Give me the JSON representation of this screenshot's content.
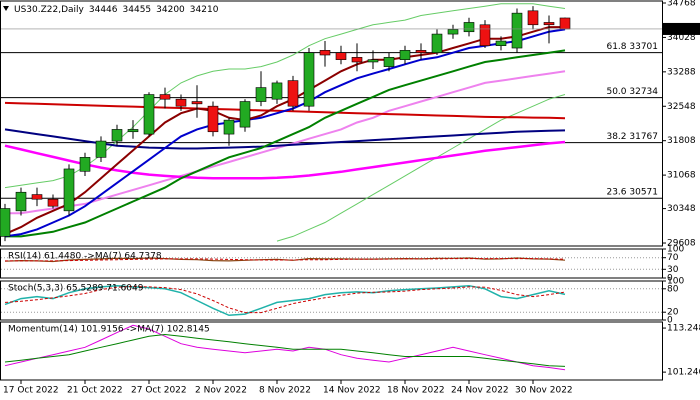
{
  "chart_data": [
    {
      "type": "candlestick",
      "title": "US30.Z22,Daily",
      "ohlc": [
        34446,
        34455,
        34200,
        34210
      ],
      "last_price": 34210,
      "up_color": "#22aa22",
      "down_color": "#ee1111",
      "categories": [
        null,
        "17 Oct 2022",
        null,
        null,
        null,
        "21 Oct 2022",
        null,
        null,
        null,
        "27 Oct 2022",
        null,
        null,
        null,
        "2 Nov 2022",
        null,
        null,
        null,
        "8 Nov 2022",
        null,
        null,
        null,
        "14 Nov 2022",
        null,
        null,
        null,
        "18 Nov 2022",
        null,
        null,
        null,
        "24 Nov 2022",
        null,
        null,
        null,
        "30 Nov 2022",
        null,
        null
      ],
      "open": [
        29750,
        30300,
        30650,
        30550,
        30300,
        31150,
        31450,
        31800,
        32000,
        31950,
        32800,
        32700,
        32650,
        32550,
        31950,
        32100,
        32650,
        32700,
        33100,
        32550,
        33750,
        33700,
        33600,
        33500,
        33400,
        33550,
        33750,
        33700,
        34100,
        34150,
        34300,
        33850,
        33800,
        34600,
        34350,
        34446
      ],
      "high": [
        30450,
        30800,
        30800,
        30650,
        31300,
        31550,
        31900,
        32150,
        32250,
        32850,
        32950,
        32800,
        33000,
        32650,
        32300,
        32700,
        33300,
        33100,
        33200,
        33800,
        33950,
        33850,
        33900,
        33750,
        33700,
        33850,
        33900,
        34200,
        34300,
        34450,
        34400,
        34050,
        34650,
        34700,
        34500,
        34455
      ],
      "low": [
        29650,
        30200,
        30400,
        30350,
        30200,
        31050,
        31350,
        31700,
        31850,
        31900,
        32500,
        32450,
        32300,
        31900,
        31700,
        32000,
        32550,
        32600,
        32450,
        32450,
        33400,
        33450,
        33300,
        33350,
        33300,
        33450,
        33550,
        33650,
        34000,
        34050,
        33800,
        33750,
        33700,
        34200,
        33900,
        34200
      ],
      "close": [
        30350,
        30700,
        30550,
        30400,
        31200,
        31450,
        31800,
        32050,
        32050,
        32800,
        32700,
        32550,
        32600,
        32000,
        32250,
        32650,
        32950,
        33050,
        32550,
        33700,
        33650,
        33550,
        33500,
        33550,
        33600,
        33750,
        33700,
        34100,
        34200,
        34350,
        33850,
        33950,
        34550,
        34300,
        34300,
        34210
      ],
      "series": [
        {
          "color": "#66cc66",
          "width": 1,
          "values": [
            30800,
            30850,
            30900,
            30950,
            31050,
            31250,
            31500,
            31800,
            32100,
            32450,
            32800,
            33050,
            33200,
            33300,
            33350,
            33350,
            33400,
            33500,
            33650,
            33850,
            34000,
            34100,
            34200,
            34300,
            34350,
            34400,
            34500,
            34550,
            34600,
            34650,
            34700,
            34750,
            34750,
            34750,
            34700,
            34650
          ]
        },
        {
          "color": "#66cc66",
          "width": 1,
          "values": [
            null,
            null,
            null,
            null,
            null,
            null,
            null,
            null,
            null,
            null,
            null,
            null,
            null,
            null,
            null,
            null,
            null,
            29650,
            29750,
            29900,
            30050,
            30250,
            30450,
            30650,
            30850,
            31050,
            31250,
            31450,
            31650,
            31850,
            32050,
            32250,
            32400,
            32550,
            32700,
            32800
          ]
        },
        {
          "color": "#ee82ee",
          "width": 2,
          "values": [
            30250,
            30250,
            30300,
            30350,
            30400,
            30450,
            30550,
            30650,
            30750,
            30850,
            30950,
            31050,
            31150,
            31250,
            31350,
            31450,
            31550,
            31650,
            31750,
            31850,
            31950,
            32050,
            32200,
            32300,
            32450,
            32550,
            32650,
            32750,
            32850,
            32950,
            33050,
            33100,
            33150,
            33200,
            33250,
            33300
          ]
        },
        {
          "color": "#cc0000",
          "width": 2,
          "values": [
            32620,
            32610,
            32600,
            32590,
            32580,
            32570,
            32560,
            32550,
            32540,
            32530,
            32520,
            32510,
            32500,
            32490,
            32480,
            32470,
            32460,
            32450,
            32440,
            32430,
            32420,
            32410,
            32400,
            32390,
            32380,
            32370,
            32360,
            32350,
            32340,
            32330,
            32320,
            32315,
            32310,
            32305,
            32300,
            32290
          ]
        },
        {
          "color": "#000080",
          "width": 2,
          "values": [
            32050,
            32000,
            31950,
            31900,
            31850,
            31800,
            31750,
            31700,
            31680,
            31660,
            31650,
            31640,
            31640,
            31650,
            31660,
            31670,
            31680,
            31700,
            31720,
            31740,
            31760,
            31780,
            31800,
            31820,
            31840,
            31860,
            31880,
            31900,
            31920,
            31940,
            31960,
            31980,
            32000,
            32010,
            32020,
            32030
          ]
        },
        {
          "color": "#ff00ff",
          "width": 2.5,
          "values": [
            31700,
            31620,
            31540,
            31460,
            31380,
            31300,
            31230,
            31170,
            31120,
            31080,
            31050,
            31030,
            31010,
            31000,
            31000,
            31000,
            31000,
            31010,
            31030,
            31060,
            31100,
            31140,
            31190,
            31240,
            31290,
            31340,
            31390,
            31440,
            31490,
            31540,
            31590,
            31630,
            31670,
            31710,
            31750,
            31780
          ]
        },
        {
          "color": "#008000",
          "width": 2,
          "values": [
            29750,
            29750,
            29800,
            29850,
            29950,
            30050,
            30200,
            30350,
            30500,
            30650,
            30800,
            31000,
            31150,
            31300,
            31450,
            31550,
            31650,
            31800,
            31950,
            32100,
            32300,
            32450,
            32600,
            32750,
            32900,
            33000,
            33100,
            33200,
            33300,
            33400,
            33500,
            33550,
            33600,
            33650,
            33700,
            33750
          ]
        },
        {
          "color": "#0000cd",
          "width": 2,
          "values": [
            29750,
            29800,
            29900,
            30050,
            30200,
            30400,
            30650,
            30900,
            31150,
            31400,
            31650,
            31900,
            32050,
            32150,
            32200,
            32250,
            32300,
            32400,
            32500,
            32650,
            32850,
            33000,
            33150,
            33250,
            33350,
            33450,
            33550,
            33600,
            33700,
            33800,
            33850,
            33900,
            33950,
            34050,
            34150,
            34200
          ]
        },
        {
          "color": "#8b0000",
          "width": 2,
          "values": [
            29800,
            29950,
            30150,
            30300,
            30450,
            30700,
            31000,
            31300,
            31600,
            31900,
            32200,
            32400,
            32500,
            32450,
            32300,
            32250,
            32350,
            32550,
            32700,
            32900,
            33100,
            33300,
            33450,
            33550,
            33550,
            33600,
            33650,
            33700,
            33800,
            33900,
            34000,
            34000,
            34050,
            34150,
            34250,
            34250
          ]
        }
      ],
      "levels": [
        {
          "label": "61.8 33701",
          "value": 33701
        },
        {
          "label": "50.0 32734",
          "value": 32734
        },
        {
          "label": "38.2 31767",
          "value": 31767
        },
        {
          "label": "23.6 30571",
          "value": 30571
        }
      ],
      "ylim": [
        29544,
        34811
      ],
      "yticks": [
        34768,
        34028,
        33288,
        32548,
        31808,
        31068,
        30348,
        29608
      ]
    },
    {
      "type": "line",
      "title": "RSI(14) 61.4480 ->MA(7) 64.7378",
      "ylim": [
        0,
        100
      ],
      "yticks": [
        0,
        30,
        70,
        100
      ],
      "series": [
        {
          "color": "#8b4513",
          "width": 1.2,
          "values": [
            58,
            60,
            59,
            57,
            62,
            64,
            66,
            68,
            67,
            69,
            67,
            64,
            63,
            60,
            59,
            61,
            63,
            64,
            61,
            67,
            66,
            66,
            65,
            65,
            66,
            67,
            66,
            68,
            68,
            69,
            65,
            66,
            69,
            66,
            65,
            61.448
          ]
        },
        {
          "color": "#cc0000",
          "width": 1,
          "dash": true,
          "values": [
            59,
            59,
            59,
            59,
            60,
            61,
            62,
            63,
            64,
            65,
            66,
            66,
            66,
            65,
            64,
            63,
            62,
            62,
            62,
            63,
            63,
            64,
            65,
            65,
            65,
            66,
            66,
            66,
            67,
            67,
            67,
            67,
            67,
            67,
            66,
            64.7378
          ]
        }
      ]
    },
    {
      "type": "line",
      "title": "Stoch(5,3,3) 65.5289 71.6049",
      "ylim": [
        0,
        100
      ],
      "yticks": [
        0,
        20,
        80,
        100
      ],
      "series": [
        {
          "color": "#20b2aa",
          "width": 1.5,
          "values": [
            40,
            55,
            60,
            55,
            70,
            80,
            85,
            88,
            85,
            83,
            80,
            70,
            50,
            30,
            12,
            15,
            30,
            45,
            50,
            55,
            65,
            70,
            72,
            70,
            75,
            78,
            80,
            82,
            85,
            88,
            80,
            60,
            55,
            65,
            75,
            65.5289
          ]
        },
        {
          "color": "#cc0000",
          "width": 1,
          "dash": true,
          "values": [
            45,
            48,
            52,
            57,
            62,
            68,
            78,
            84,
            86,
            85,
            83,
            78,
            67,
            50,
            31,
            19,
            19,
            30,
            42,
            50,
            57,
            63,
            69,
            71,
            72,
            74,
            78,
            80,
            82,
            85,
            84,
            76,
            65,
            60,
            65,
            71.6049
          ]
        }
      ]
    },
    {
      "type": "line",
      "title": "Momentum(14) 101.9156 ->MA(7) 102.8145",
      "ylim": [
        99.1,
        114.9
      ],
      "yticks": [
        101.246,
        113.2484
      ],
      "series": [
        {
          "color": "#dd00dd",
          "width": 1,
          "values": [
            103,
            104,
            105,
            106,
            107,
            108,
            110,
            112,
            114,
            113,
            111,
            109,
            108,
            107.5,
            107,
            106.5,
            107,
            107.5,
            107,
            108,
            107.5,
            106,
            105,
            104.5,
            104,
            105,
            106,
            107,
            108,
            107,
            106,
            105,
            104,
            103,
            102.5,
            101.9156
          ]
        },
        {
          "color": "#008000",
          "width": 1,
          "values": [
            104,
            104.5,
            105,
            105.5,
            106,
            107,
            108,
            109,
            110,
            111,
            111.5,
            111,
            110.5,
            110,
            109.5,
            109,
            108.5,
            108,
            107.5,
            107.5,
            107.5,
            107.5,
            107,
            106.5,
            106,
            105.5,
            105.5,
            105.5,
            105.5,
            105.5,
            105,
            104.5,
            104,
            103.5,
            103,
            102.8145
          ]
        }
      ]
    }
  ]
}
